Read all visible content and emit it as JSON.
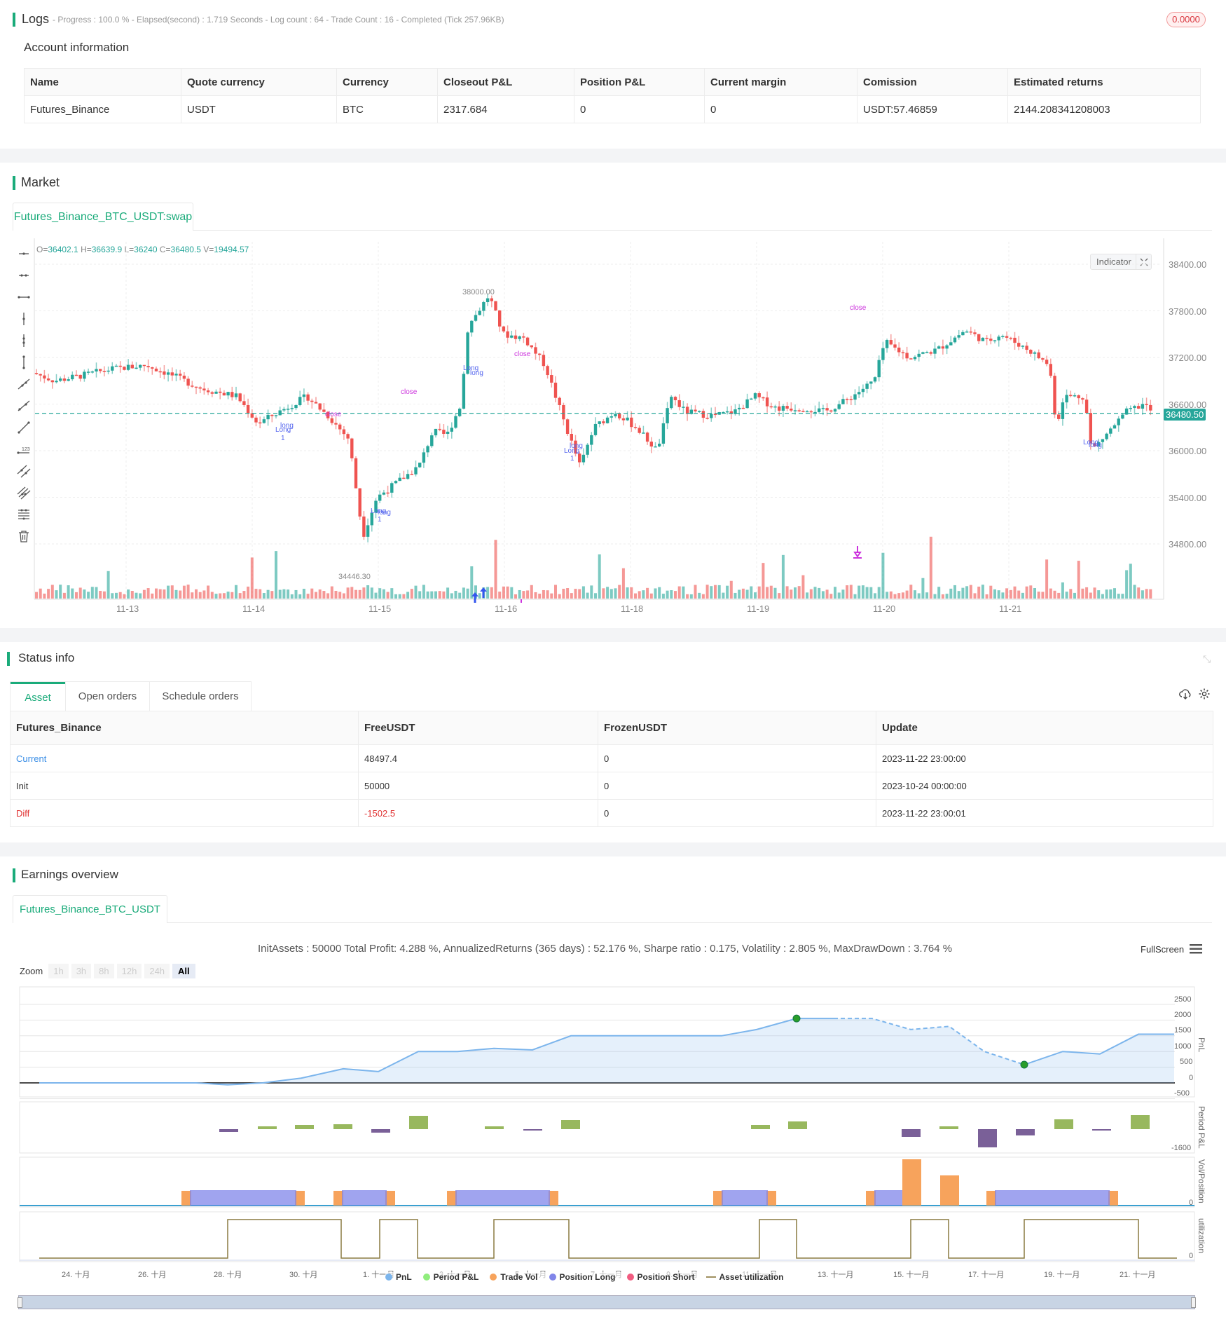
{
  "logs": {
    "title": "Logs",
    "summary": "- Progress : 100.0 % - Elapsed(second) : 1.719  Seconds - Log count : 64 - Trade Count : 16 - Completed (Tick 257.96KB)",
    "badge": "0.0000"
  },
  "account": {
    "title": "Account information",
    "columns": [
      "Name",
      "Quote currency",
      "Currency",
      "Closeout P&L",
      "Position P&L",
      "Current margin",
      "Comission",
      "Estimated returns"
    ],
    "row": [
      "Futures_Binance",
      "USDT",
      "BTC",
      "2317.684",
      "0",
      "0",
      "USDT:57.46859",
      "2144.208341208003"
    ]
  },
  "market": {
    "title": "Market",
    "tab": "Futures_Binance_BTC_USDT:swap",
    "ohlc": {
      "o_label": "O=",
      "o": "36402.1",
      "h_label": " H=",
      "h": "36639.9",
      "l_label": " L=",
      "l": "36240",
      "c_label": " C=",
      "c": "36480.5",
      "v_label": " V=",
      "v": "19494.57"
    },
    "indicator_button": "Indicator",
    "current_price": "36480.50",
    "high_marker": "38000.00",
    "low_marker": "34446.30",
    "y_ticks": [
      "38400.00",
      "37800.00",
      "37200.00",
      "36600.00",
      "36000.00",
      "35400.00",
      "34800.00"
    ],
    "x_ticks": [
      "11-13",
      "11-14",
      "11-15",
      "11-16",
      "11-18",
      "11-19",
      "11-20",
      "11-21"
    ],
    "annotations": {
      "close": "close",
      "long": "long",
      "Long": "Long",
      "one": "1"
    },
    "colors": {
      "up": "#26a69a",
      "down": "#ef5350",
      "signal": "#3355ee",
      "close": "#cc33dd"
    }
  },
  "status": {
    "title": "Status info",
    "tabs": [
      "Asset",
      "Open orders",
      "Schedule orders"
    ],
    "columns": [
      "Futures_Binance",
      "FreeUSDT",
      "FrozenUSDT",
      "Update"
    ],
    "rows": [
      [
        "Current",
        "48497.4",
        "0",
        "2023-11-22 23:00:00"
      ],
      [
        "Init",
        "50000",
        "0",
        "2023-10-24 00:00:00"
      ],
      [
        "Diff",
        "-1502.5",
        "0",
        "2023-11-22 23:00:01"
      ]
    ]
  },
  "earnings": {
    "title": "Earnings overview",
    "tab": "Futures_Binance_BTC_USDT",
    "summary": "InitAssets : 50000 Total Profit: 4.288 %, AnnualizedReturns (365 days) : 52.176 %, Sharpe ratio : 0.175, Volatility : 2.805 %, MaxDrawDown : 3.764 %",
    "fullscreen": "FullScreen",
    "zoom_label": "Zoom",
    "zoom_buttons": [
      "1h",
      "3h",
      "8h",
      "12h",
      "24h",
      "All"
    ],
    "pnl_ticks": [
      "2500",
      "2000",
      "1500",
      "1000",
      "500",
      "0",
      "-500"
    ],
    "pnl_axis": "PnL",
    "period_axis": "Period P&L",
    "period_min": "-1600",
    "vol_axis": "Vol/Position",
    "vol_zero": "0",
    "util_axis": "utilization",
    "util_zero": "0",
    "x_ticks": [
      "24. 十月",
      "26. 十月",
      "28. 十月",
      "30. 十月",
      "1. 十一月",
      "3. 十一月",
      "5. 十一月",
      "7. 十一月",
      "9. 十一月",
      "11. 十一月",
      "13. 十一月",
      "15. 十一月",
      "17. 十一月",
      "19. 十一月",
      "21. 十一月"
    ],
    "legend": [
      {
        "label": "PnL",
        "color": "#7cb5ec"
      },
      {
        "label": "Period P&L",
        "color": "#90ed7d"
      },
      {
        "label": "Trade Vol",
        "color": "#f7a35c"
      },
      {
        "label": "Position Long",
        "color": "#8085e9"
      },
      {
        "label": "Position Short",
        "color": "#f15c80"
      },
      {
        "label": "Asset utilization",
        "color": "#a09060"
      }
    ]
  }
}
